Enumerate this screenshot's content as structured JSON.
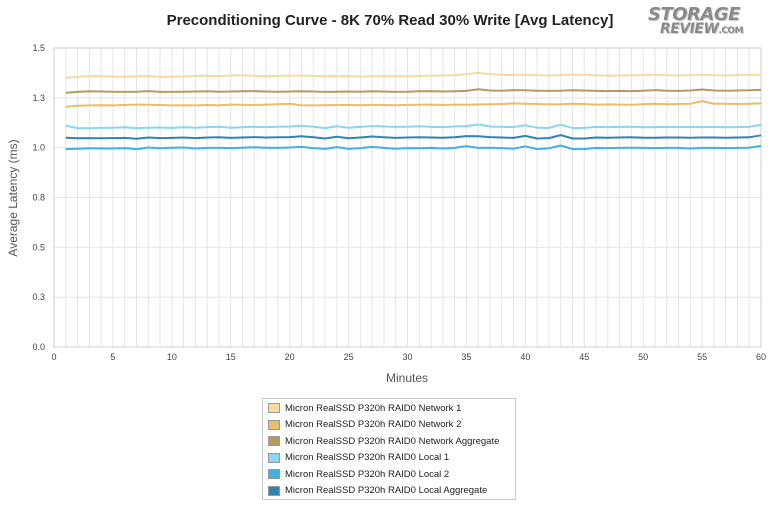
{
  "chart_data": {
    "type": "line",
    "title": "Preconditioning Curve - 8K 70% Read 30% Write [Avg Latency]",
    "xlabel": "Minutes",
    "ylabel": "Average Latency (ms)",
    "xlim": [
      0,
      60
    ],
    "ylim": [
      0,
      1.5
    ],
    "x_ticks": [
      "0",
      "5",
      "10",
      "15",
      "20",
      "25",
      "30",
      "35",
      "40",
      "45",
      "50",
      "55",
      "60"
    ],
    "y_ticks": [
      "0.0",
      "0.3",
      "0.5",
      "0.8",
      "1.0",
      "1.3",
      "1.5"
    ],
    "grid": true,
    "legend_position": "bottom",
    "x": [
      1,
      2,
      3,
      4,
      5,
      6,
      7,
      8,
      9,
      10,
      11,
      12,
      13,
      14,
      15,
      16,
      17,
      18,
      19,
      20,
      21,
      22,
      23,
      24,
      25,
      26,
      27,
      28,
      29,
      30,
      31,
      32,
      33,
      34,
      35,
      36,
      37,
      38,
      39,
      40,
      41,
      42,
      43,
      44,
      45,
      46,
      47,
      48,
      49,
      50,
      51,
      52,
      53,
      54,
      55,
      56,
      57,
      58,
      59,
      60
    ],
    "series": [
      {
        "name": "Micron RealSSD P320h RAID0 Network 1",
        "color": "#f7d9a1",
        "values": [
          1.35,
          1.355,
          1.36,
          1.358,
          1.357,
          1.356,
          1.358,
          1.36,
          1.355,
          1.356,
          1.357,
          1.36,
          1.361,
          1.359,
          1.362,
          1.363,
          1.36,
          1.359,
          1.36,
          1.361,
          1.362,
          1.36,
          1.358,
          1.359,
          1.36,
          1.357,
          1.359,
          1.36,
          1.358,
          1.359,
          1.36,
          1.361,
          1.362,
          1.364,
          1.368,
          1.375,
          1.368,
          1.365,
          1.364,
          1.366,
          1.363,
          1.362,
          1.364,
          1.366,
          1.365,
          1.363,
          1.361,
          1.362,
          1.363,
          1.364,
          1.366,
          1.363,
          1.362,
          1.363,
          1.365,
          1.363,
          1.362,
          1.364,
          1.365,
          1.366
        ]
      },
      {
        "name": "Micron RealSSD P320h RAID0 Network 2",
        "color": "#eabd69",
        "values": [
          1.205,
          1.21,
          1.212,
          1.213,
          1.212,
          1.214,
          1.216,
          1.215,
          1.214,
          1.212,
          1.213,
          1.212,
          1.214,
          1.212,
          1.216,
          1.215,
          1.214,
          1.216,
          1.218,
          1.22,
          1.213,
          1.212,
          1.213,
          1.214,
          1.214,
          1.213,
          1.215,
          1.214,
          1.213,
          1.214,
          1.215,
          1.216,
          1.214,
          1.216,
          1.215,
          1.217,
          1.218,
          1.219,
          1.222,
          1.22,
          1.219,
          1.217,
          1.218,
          1.22,
          1.219,
          1.216,
          1.217,
          1.216,
          1.215,
          1.218,
          1.22,
          1.218,
          1.219,
          1.22,
          1.234,
          1.22,
          1.22,
          1.219,
          1.22,
          1.222
        ]
      },
      {
        "name": "Micron RealSSD P320h RAID0 Network Aggregate",
        "color": "#b8995e",
        "values": [
          1.275,
          1.28,
          1.283,
          1.282,
          1.281,
          1.28,
          1.281,
          1.284,
          1.28,
          1.28,
          1.281,
          1.282,
          1.283,
          1.281,
          1.282,
          1.283,
          1.284,
          1.282,
          1.281,
          1.282,
          1.283,
          1.282,
          1.28,
          1.281,
          1.282,
          1.281,
          1.283,
          1.282,
          1.28,
          1.281,
          1.283,
          1.284,
          1.282,
          1.283,
          1.285,
          1.293,
          1.287,
          1.286,
          1.289,
          1.288,
          1.286,
          1.285,
          1.286,
          1.288,
          1.287,
          1.285,
          1.284,
          1.285,
          1.284,
          1.286,
          1.289,
          1.286,
          1.285,
          1.287,
          1.292,
          1.287,
          1.286,
          1.287,
          1.288,
          1.29
        ]
      },
      {
        "name": "Micron RealSSD P320h RAID0 Local 1",
        "color": "#86d6f4",
        "values": [
          1.11,
          1.098,
          1.097,
          1.099,
          1.1,
          1.102,
          1.098,
          1.1,
          1.101,
          1.099,
          1.102,
          1.1,
          1.103,
          1.105,
          1.1,
          1.102,
          1.104,
          1.103,
          1.105,
          1.106,
          1.11,
          1.105,
          1.098,
          1.107,
          1.1,
          1.104,
          1.108,
          1.106,
          1.104,
          1.105,
          1.107,
          1.104,
          1.103,
          1.106,
          1.108,
          1.116,
          1.106,
          1.104,
          1.103,
          1.112,
          1.1,
          1.099,
          1.115,
          1.098,
          1.099,
          1.104,
          1.103,
          1.104,
          1.105,
          1.102,
          1.103,
          1.104,
          1.103,
          1.104,
          1.103,
          1.104,
          1.102,
          1.103,
          1.104,
          1.115
        ]
      },
      {
        "name": "Micron RealSSD P320h RAID0 Local 2",
        "color": "#40b1e4",
        "values": [
          0.993,
          0.995,
          0.997,
          0.996,
          0.996,
          0.998,
          0.992,
          1.001,
          0.997,
          1.0,
          1.001,
          0.996,
          0.999,
          0.999,
          0.998,
          1.0,
          1.002,
          1.0,
          0.999,
          1.001,
          1.004,
          0.998,
          0.994,
          1.003,
          0.994,
          0.998,
          1.004,
          0.999,
          0.995,
          0.998,
          0.997,
          0.999,
          0.996,
          0.999,
          1.008,
          0.999,
          1.0,
          0.998,
          0.995,
          1.007,
          0.993,
          0.997,
          1.011,
          0.993,
          0.993,
          0.999,
          0.998,
          0.999,
          1.0,
          0.999,
          0.998,
          0.999,
          0.999,
          0.996,
          0.999,
          0.999,
          0.998,
          0.999,
          1.0,
          1.009
        ]
      },
      {
        "name": "Micron RealSSD P320h RAID0 Local Aggregate",
        "color": "#2f84b2",
        "values": [
          1.05,
          1.047,
          1.048,
          1.047,
          1.048,
          1.049,
          1.045,
          1.051,
          1.048,
          1.049,
          1.051,
          1.048,
          1.051,
          1.052,
          1.049,
          1.051,
          1.053,
          1.051,
          1.052,
          1.053,
          1.057,
          1.052,
          1.046,
          1.055,
          1.047,
          1.051,
          1.056,
          1.052,
          1.049,
          1.051,
          1.052,
          1.051,
          1.05,
          1.052,
          1.058,
          1.057,
          1.053,
          1.051,
          1.049,
          1.059,
          1.046,
          1.048,
          1.063,
          1.046,
          1.046,
          1.051,
          1.05,
          1.051,
          1.052,
          1.05,
          1.05,
          1.051,
          1.051,
          1.05,
          1.051,
          1.051,
          1.05,
          1.051,
          1.052,
          1.062
        ]
      }
    ]
  }
}
